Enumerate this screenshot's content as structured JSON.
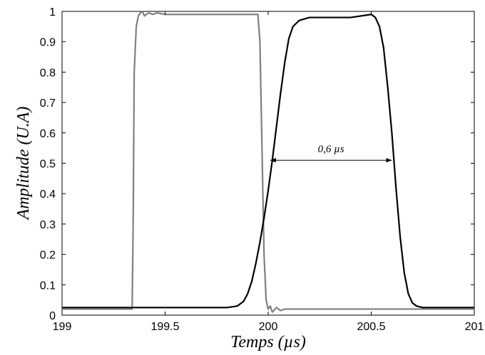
{
  "chart_data": {
    "type": "line",
    "title": "",
    "xlabel": "Temps (µs)",
    "ylabel": "Amplitude (U.A)",
    "xlim": [
      199,
      201
    ],
    "ylim": [
      0,
      1
    ],
    "xticks": [
      199,
      199.5,
      200,
      200.5,
      201
    ],
    "xtick_labels": [
      "199",
      "199.5",
      "200",
      "200.5",
      "201"
    ],
    "yticks": [
      0,
      0.1,
      0.2,
      0.3,
      0.4,
      0.5,
      0.6,
      0.7,
      0.8,
      0.9,
      1
    ],
    "ytick_labels": [
      "0",
      "0.1",
      "0.2",
      "0.3",
      "0.4",
      "0.5",
      "0.6",
      "0.7",
      "0.8",
      "0.9",
      "1"
    ],
    "grid": false,
    "legend": false,
    "series": [
      {
        "color": "#808080",
        "x": [
          199.0,
          199.34,
          199.345,
          199.35,
          199.36,
          199.37,
          199.38,
          199.39,
          199.4,
          199.42,
          199.44,
          199.46,
          199.5,
          199.6,
          199.7,
          199.8,
          199.9,
          199.95,
          199.96,
          199.97,
          199.98,
          199.99,
          200.0,
          200.01,
          200.02,
          200.04,
          200.06,
          200.08,
          200.1,
          200.2,
          200.4,
          200.6,
          200.8,
          201.0
        ],
        "y": [
          0.02,
          0.02,
          0.3,
          0.8,
          0.95,
          0.985,
          0.995,
          1.0,
          0.985,
          0.995,
          0.99,
          0.995,
          0.99,
          0.99,
          0.99,
          0.99,
          0.99,
          0.99,
          0.9,
          0.55,
          0.2,
          0.05,
          0.02,
          0.03,
          0.01,
          0.025,
          0.015,
          0.02,
          0.02,
          0.02,
          0.02,
          0.02,
          0.02,
          0.02
        ]
      },
      {
        "color": "#000000",
        "x": [
          199.0,
          199.5,
          199.8,
          199.85,
          199.88,
          199.9,
          199.92,
          199.94,
          199.96,
          199.98,
          200.0,
          200.02,
          200.04,
          200.06,
          200.08,
          200.1,
          200.12,
          200.15,
          200.2,
          200.3,
          200.4,
          200.5,
          200.52,
          200.54,
          200.56,
          200.58,
          200.6,
          200.62,
          200.64,
          200.66,
          200.68,
          200.7,
          200.72,
          200.75,
          200.8,
          201.0
        ],
        "y": [
          0.025,
          0.025,
          0.025,
          0.03,
          0.045,
          0.07,
          0.11,
          0.17,
          0.24,
          0.32,
          0.41,
          0.51,
          0.62,
          0.73,
          0.83,
          0.91,
          0.95,
          0.97,
          0.98,
          0.98,
          0.98,
          0.99,
          0.98,
          0.95,
          0.88,
          0.75,
          0.6,
          0.42,
          0.26,
          0.14,
          0.07,
          0.04,
          0.03,
          0.025,
          0.025,
          0.025
        ]
      }
    ],
    "annotations": [
      {
        "text": "0,6 µs",
        "type": "double-arrow",
        "x_start": 200.01,
        "x_end": 200.6,
        "y": 0.51
      }
    ]
  }
}
